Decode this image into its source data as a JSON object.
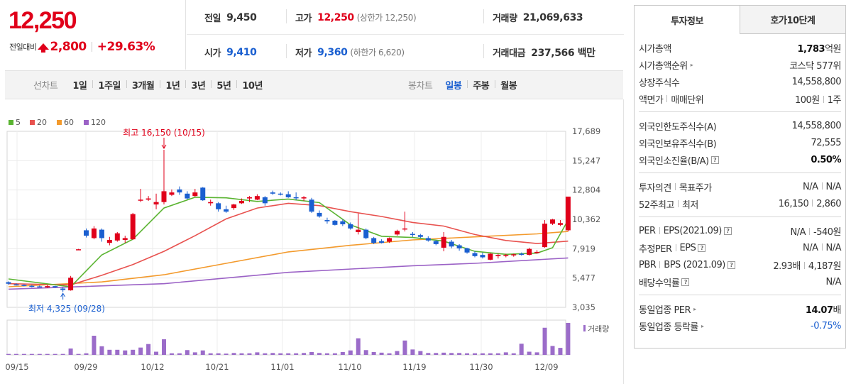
{
  "header": {
    "current_price": "12,250",
    "change_label": "전일대비",
    "change_value": "2,800",
    "change_rate": "+29.63%",
    "row1": [
      {
        "label": "전일",
        "value": "9,450",
        "sub": "",
        "color": "dark"
      },
      {
        "label": "고가",
        "value": "12,250",
        "sub": "(상한가 12,250)",
        "color": "red"
      },
      {
        "label": "거래량",
        "value": "21,069,633",
        "sub": "",
        "color": "dark"
      }
    ],
    "row2": [
      {
        "label": "시가",
        "value": "9,410",
        "sub": "",
        "color": "blue"
      },
      {
        "label": "저가",
        "value": "9,360",
        "sub": "(하한가 6,620)",
        "color": "blue"
      },
      {
        "label": "거래대금",
        "value": "237,566 백만",
        "sub": "",
        "color": "dark"
      }
    ]
  },
  "period_bar": {
    "line_label": "선차트",
    "line_periods": [
      "1일",
      "1주일",
      "3개월",
      "1년",
      "3년",
      "5년",
      "10년"
    ],
    "candle_label": "봉차트",
    "candle_periods": [
      "일봉",
      "주봉",
      "월봉"
    ],
    "selected_candle": "일봉"
  },
  "right_panel": {
    "tabs": [
      "투자정보",
      "호가10단계"
    ],
    "active_tab": "투자정보",
    "groups": [
      [
        {
          "label": "시가총액",
          "value_bold": "1,783",
          "value": "억원"
        },
        {
          "label": "시가총액순위",
          "caret": true,
          "value": "코스닥 577위"
        },
        {
          "label": "상장주식수",
          "value": "14,558,800"
        },
        {
          "label": "액면가",
          "label2": "매매단위",
          "value": "100원",
          "value2": "1주"
        }
      ],
      [
        {
          "label": "외국인한도주식수(A)",
          "value": "14,558,800"
        },
        {
          "label": "외국인보유주식수(B)",
          "value": "72,555"
        },
        {
          "label": "외국인소진율(B/A)",
          "q": true,
          "value_bold": "0.50%"
        }
      ],
      [
        {
          "label": "투자의견",
          "label2": "목표주가",
          "value": "N/A",
          "value2": "N/A"
        },
        {
          "label": "52주최고",
          "label2": "최저",
          "value": "16,150",
          "value2": "2,860"
        }
      ],
      [
        {
          "label": "PER",
          "label2": "EPS(2021.09)",
          "q": true,
          "value": "N/A",
          "value2": "-540원"
        },
        {
          "label": "추정PER",
          "label2": "EPS",
          "q": true,
          "value": "N/A",
          "value2": "N/A"
        },
        {
          "label": "PBR",
          "label2": "BPS (2021.09)",
          "q": true,
          "value": "2.93배",
          "value2": "4,187원"
        },
        {
          "label": "배당수익률",
          "q": true,
          "value": "N/A"
        }
      ],
      [
        {
          "label": "동일업종 PER",
          "caret": true,
          "value_bold": "14.07",
          "value": "배"
        },
        {
          "label": "동일업종 등락률",
          "caret": true,
          "value": "-0.75%",
          "blue": true
        }
      ]
    ]
  },
  "chart_data": {
    "type": "candlestick",
    "legend": [
      {
        "name": "5",
        "color": "#5ab431"
      },
      {
        "name": "20",
        "color": "#e8524f"
      },
      {
        "name": "60",
        "color": "#f39a2c"
      },
      {
        "name": "120",
        "color": "#9b62c6"
      }
    ],
    "y_ticks": [
      "17,689",
      "15,247",
      "12,804",
      "10,362",
      "7,919",
      "5,477",
      "3,035"
    ],
    "ylim": [
      3035,
      17689
    ],
    "x_ticks": [
      "09/15",
      "09/29",
      "10/12",
      "10/21",
      "11/01",
      "11/10",
      "11/19",
      "11/30",
      "12/09"
    ],
    "max_annotation": "최고 16,150 (10/15)",
    "min_annotation": "최저 4,325 (09/28)",
    "volume_label": "거래량",
    "up_color": "#e0001a",
    "down_color": "#1a5fd0",
    "candles": [
      [
        5130,
        5200,
        4900,
        5000
      ],
      [
        4950,
        5030,
        4850,
        4900
      ],
      [
        4900,
        4950,
        4780,
        4820
      ],
      [
        4830,
        4900,
        4700,
        4780
      ],
      [
        4780,
        4850,
        4700,
        4760
      ],
      [
        4700,
        4900,
        4650,
        4800
      ],
      [
        4800,
        4830,
        4650,
        4700
      ],
      [
        4600,
        4700,
        4325,
        4480
      ],
      [
        4450,
        5650,
        4420,
        5500
      ],
      [
        7850,
        7900,
        7800,
        7870
      ],
      [
        9450,
        9600,
        8850,
        9000
      ],
      [
        8800,
        9800,
        8700,
        9600
      ],
      [
        9500,
        9600,
        8500,
        8800
      ],
      [
        8400,
        8900,
        8200,
        8650
      ],
      [
        8600,
        9300,
        8500,
        9200
      ],
      [
        8650,
        9000,
        8400,
        8800
      ],
      [
        8700,
        10900,
        8650,
        10800
      ],
      [
        11950,
        12900,
        11800,
        12000
      ],
      [
        12000,
        12300,
        11900,
        12100
      ],
      [
        11600,
        12500,
        11200,
        11800
      ],
      [
        11800,
        16150,
        11600,
        12700
      ],
      [
        12400,
        12850,
        12300,
        12600
      ],
      [
        12850,
        13100,
        12400,
        12600
      ],
      [
        12500,
        12700,
        12000,
        12100
      ],
      [
        12300,
        12900,
        12250,
        12600
      ],
      [
        13000,
        13050,
        11900,
        11950
      ],
      [
        11700,
        12000,
        11500,
        11800
      ],
      [
        11700,
        11800,
        11000,
        11200
      ],
      [
        11200,
        11500,
        10900,
        11000
      ],
      [
        11300,
        11650,
        11150,
        11600
      ],
      [
        11700,
        12100,
        11650,
        11900
      ],
      [
        12100,
        12300,
        11800,
        12200
      ],
      [
        12000,
        12450,
        11950,
        12300
      ],
      [
        12200,
        12300,
        11500,
        11700
      ],
      [
        12600,
        12750,
        12400,
        12500
      ],
      [
        12500,
        12600,
        12350,
        12450
      ],
      [
        12450,
        12700,
        12150,
        12200
      ],
      [
        12200,
        12600,
        11950,
        12150
      ],
      [
        12100,
        12300,
        11900,
        12200
      ],
      [
        12000,
        12150,
        10900,
        11000
      ],
      [
        10900,
        11100,
        10500,
        10600
      ],
      [
        10300,
        10500,
        10000,
        10200
      ],
      [
        10250,
        10300,
        9850,
        9900
      ],
      [
        10200,
        10350,
        9800,
        9950
      ],
      [
        9950,
        10100,
        9500,
        9600
      ],
      [
        9300,
        10850,
        9100,
        9500
      ],
      [
        9500,
        9600,
        8700,
        8800
      ],
      [
        8800,
        8900,
        8300,
        8400
      ],
      [
        8550,
        8700,
        8350,
        8400
      ],
      [
        8500,
        8850,
        8400,
        8800
      ],
      [
        9100,
        9500,
        9000,
        9400
      ],
      [
        9550,
        11000,
        9350,
        9600
      ],
      [
        9150,
        9300,
        8900,
        9100
      ],
      [
        9050,
        9150,
        8800,
        8900
      ],
      [
        8800,
        8950,
        8500,
        8600
      ],
      [
        8550,
        8650,
        8200,
        8300
      ],
      [
        8000,
        9300,
        7700,
        8900
      ],
      [
        8500,
        8650,
        7950,
        8100
      ],
      [
        8200,
        8300,
        7750,
        7950
      ],
      [
        7950,
        8000,
        7500,
        7600
      ],
      [
        7550,
        7700,
        7200,
        7300
      ],
      [
        7400,
        7600,
        7100,
        7200
      ],
      [
        7000,
        7550,
        6950,
        7500
      ],
      [
        7300,
        7500,
        7100,
        7400
      ],
      [
        7350,
        7500,
        7200,
        7400
      ],
      [
        7400,
        7500,
        7250,
        7450
      ],
      [
        7500,
        7600,
        7350,
        7400
      ],
      [
        7400,
        8000,
        7350,
        7900
      ],
      [
        7550,
        7800,
        7500,
        7650
      ],
      [
        8050,
        10300,
        8000,
        10000
      ],
      [
        10000,
        10400,
        9900,
        10350
      ],
      [
        9900,
        10300,
        9800,
        10050
      ],
      [
        9450,
        12250,
        9360,
        12250
      ]
    ],
    "ma5": [
      [
        0,
        5400
      ],
      [
        8,
        4750
      ],
      [
        12,
        7400
      ],
      [
        16,
        8700
      ],
      [
        20,
        11300
      ],
      [
        24,
        12200
      ],
      [
        28,
        12150
      ],
      [
        32,
        11850
      ],
      [
        36,
        12050
      ],
      [
        40,
        11750
      ],
      [
        44,
        9900
      ],
      [
        48,
        8950
      ],
      [
        52,
        8850
      ],
      [
        56,
        8550
      ],
      [
        60,
        7700
      ],
      [
        64,
        7450
      ],
      [
        68,
        7550
      ],
      [
        70,
        8000
      ],
      [
        72,
        10300
      ]
    ],
    "ma20": [
      [
        0,
        5000
      ],
      [
        8,
        4900
      ],
      [
        12,
        5700
      ],
      [
        16,
        6600
      ],
      [
        20,
        7700
      ],
      [
        24,
        9000
      ],
      [
        28,
        10400
      ],
      [
        32,
        11300
      ],
      [
        36,
        11700
      ],
      [
        40,
        11500
      ],
      [
        44,
        11000
      ],
      [
        48,
        10600
      ],
      [
        52,
        10100
      ],
      [
        56,
        9800
      ],
      [
        60,
        9100
      ],
      [
        64,
        8600
      ],
      [
        68,
        8350
      ],
      [
        72,
        8550
      ]
    ],
    "ma60": [
      [
        0,
        4750
      ],
      [
        12,
        5150
      ],
      [
        20,
        5750
      ],
      [
        28,
        6700
      ],
      [
        36,
        7650
      ],
      [
        44,
        8200
      ],
      [
        52,
        8650
      ],
      [
        60,
        8900
      ],
      [
        68,
        9150
      ],
      [
        72,
        9350
      ]
    ],
    "ma120": [
      [
        0,
        4550
      ],
      [
        20,
        5000
      ],
      [
        36,
        5950
      ],
      [
        52,
        6500
      ],
      [
        60,
        6700
      ],
      [
        72,
        7150
      ]
    ],
    "volumes": [
      0.03,
      0.03,
      0.03,
      0.03,
      0.03,
      0.03,
      0.03,
      0.03,
      0.2,
      0.03,
      0.05,
      0.6,
      0.27,
      0.16,
      0.16,
      0.14,
      0.16,
      0.23,
      0.34,
      0.1,
      0.49,
      0.05,
      0.05,
      0.15,
      0.08,
      0.14,
      0.05,
      0.05,
      0.04,
      0.06,
      0.05,
      0.05,
      0.08,
      0.05,
      0.06,
      0.05,
      0.05,
      0.05,
      0.06,
      0.09,
      0.06,
      0.05,
      0.05,
      0.09,
      0.14,
      0.52,
      0.15,
      0.09,
      0.07,
      0.05,
      0.12,
      0.45,
      0.17,
      0.12,
      0.06,
      0.06,
      0.07,
      0.06,
      0.06,
      0.05,
      0.05,
      0.05,
      0.05,
      0.05,
      0.08,
      0.05,
      0.35,
      0.1,
      0.08,
      0.85,
      0.28,
      0.22,
      1.0
    ]
  }
}
